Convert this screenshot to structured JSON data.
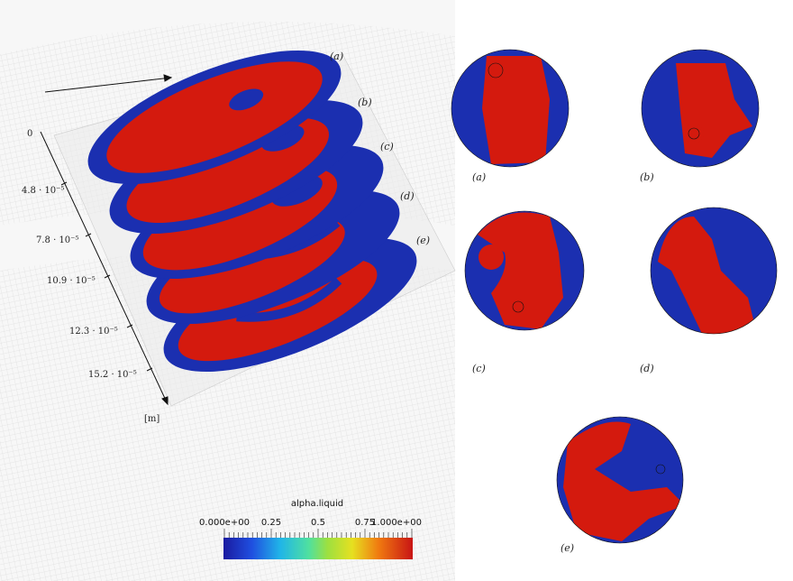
{
  "figure": {
    "panel3d": {
      "profile_labels": [
        "(a)",
        "(b)",
        "(c)",
        "(d)",
        "(e)"
      ],
      "axis": {
        "ticks": [
          "0",
          "4.8 · 10⁻⁵",
          "7.8 · 10⁻⁵",
          "10.9 · 10⁻⁵",
          "12.3 · 10⁻⁵",
          "15.2 · 10⁻⁵"
        ],
        "unit": "[m]"
      }
    },
    "colorbar": {
      "title": "alpha.liquid",
      "tick_labels": [
        "0.000e+00",
        "0.25",
        "0.5",
        "0.75",
        "1.000e+00"
      ]
    },
    "slices": {
      "labels": [
        "(a)",
        "(b)",
        "(c)",
        "(d)",
        "(e)"
      ]
    }
  }
}
